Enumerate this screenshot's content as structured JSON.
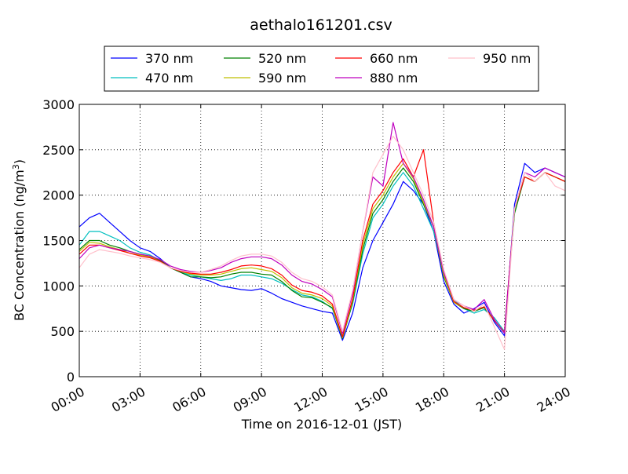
{
  "chart_data": {
    "type": "line",
    "title": "aethalo161201.csv",
    "xlabel": "Time on 2016-12-01 (JST)",
    "ylabel_main": "BC Concentration (ng/m",
    "ylabel_sup": "3",
    "ylabel_close": ")",
    "xlim": [
      "2016-12-01 00:00",
      "2016-12-02 00:00"
    ],
    "ylim": [
      0,
      3000
    ],
    "x_ticks": [
      {
        "h": 0,
        "label": "00:00"
      },
      {
        "h": 3,
        "label": "03:00"
      },
      {
        "h": 6,
        "label": "06:00"
      },
      {
        "h": 9,
        "label": "09:00"
      },
      {
        "h": 12,
        "label": "12:00"
      },
      {
        "h": 15,
        "label": "15:00"
      },
      {
        "h": 18,
        "label": "18:00"
      },
      {
        "h": 21,
        "label": "21:00"
      },
      {
        "h": 24,
        "label": "24:00"
      }
    ],
    "y_ticks": [
      {
        "v": 0,
        "label": "0"
      },
      {
        "v": 500,
        "label": "500"
      },
      {
        "v": 1000,
        "label": "1000"
      },
      {
        "v": 1500,
        "label": "1500"
      },
      {
        "v": 2000,
        "label": "2000"
      },
      {
        "v": 2500,
        "label": "2500"
      },
      {
        "v": 3000,
        "label": "3000"
      }
    ],
    "grid": true,
    "legend": "top-center",
    "x": [
      "00:00",
      "00:30",
      "01:00",
      "01:30",
      "02:00",
      "02:30",
      "03:00",
      "03:30",
      "04:00",
      "04:30",
      "05:00",
      "05:30",
      "06:00",
      "06:30",
      "07:00",
      "07:30",
      "08:00",
      "08:30",
      "09:00",
      "09:30",
      "10:00",
      "10:30",
      "11:00",
      "11:30",
      "12:00",
      "12:30",
      "13:00",
      "13:30",
      "14:00",
      "14:30",
      "15:00",
      "15:30",
      "16:00",
      "16:30",
      "17:00",
      "17:30",
      "18:00",
      "18:30",
      "19:00",
      "19:30",
      "20:00",
      "20:30",
      "21:00",
      "21:30",
      "22:00",
      "22:30",
      "23:00",
      "23:30",
      "24:00"
    ],
    "series": [
      {
        "name": "370 nm",
        "color": "#0000ff",
        "values": [
          1650,
          1750,
          1800,
          1700,
          1600,
          1500,
          1420,
          1380,
          1300,
          1200,
          1150,
          1100,
          1080,
          1050,
          1000,
          980,
          960,
          950,
          970,
          920,
          860,
          820,
          780,
          750,
          720,
          700,
          400,
          700,
          1200,
          1500,
          1700,
          1900,
          2150,
          2050,
          1900,
          1600,
          1050,
          800,
          700,
          750,
          820,
          600,
          450,
          1900,
          2350,
          2250,
          2300,
          2250,
          2200
        ]
      },
      {
        "name": "470 nm",
        "color": "#00bfbf",
        "values": [
          1450,
          1600,
          1600,
          1550,
          1500,
          1420,
          1370,
          1340,
          1280,
          1200,
          1150,
          1120,
          1100,
          1080,
          1060,
          1080,
          1120,
          1120,
          1100,
          1080,
          1030,
          960,
          900,
          880,
          830,
          750,
          450,
          800,
          1350,
          1750,
          1900,
          2100,
          2250,
          2100,
          1850,
          1600,
          1150,
          850,
          750,
          700,
          740,
          650,
          500,
          1850,
          2200,
          2150,
          2250,
          2200,
          2150
        ]
      },
      {
        "name": "520 nm",
        "color": "#008000",
        "values": [
          1400,
          1500,
          1500,
          1450,
          1420,
          1380,
          1350,
          1320,
          1280,
          1200,
          1150,
          1100,
          1100,
          1090,
          1100,
          1130,
          1150,
          1150,
          1130,
          1120,
          1050,
          950,
          880,
          870,
          820,
          760,
          420,
          820,
          1400,
          1800,
          1950,
          2150,
          2300,
          2150,
          1900,
          1650,
          1100,
          820,
          750,
          720,
          760,
          620,
          480,
          1800,
          2200,
          2150,
          2250,
          2200,
          2150
        ]
      },
      {
        "name": "590 nm",
        "color": "#bfbf00",
        "values": [
          1380,
          1480,
          1470,
          1430,
          1400,
          1360,
          1340,
          1320,
          1270,
          1200,
          1160,
          1130,
          1120,
          1120,
          1130,
          1160,
          1190,
          1200,
          1180,
          1160,
          1090,
          980,
          920,
          900,
          860,
          780,
          430,
          840,
          1450,
          1850,
          2000,
          2200,
          2350,
          2180,
          1920,
          1650,
          1120,
          820,
          760,
          730,
          770,
          620,
          490,
          1850,
          2200,
          2150,
          2250,
          2200,
          2150
        ]
      },
      {
        "name": "660 nm",
        "color": "#ff0000",
        "values": [
          1350,
          1450,
          1450,
          1420,
          1390,
          1360,
          1330,
          1310,
          1270,
          1200,
          1160,
          1140,
          1130,
          1130,
          1150,
          1180,
          1220,
          1230,
          1220,
          1190,
          1120,
          1010,
          950,
          930,
          890,
          800,
          440,
          860,
          1500,
          1900,
          2050,
          2250,
          2400,
          2200,
          2500,
          1700,
          1150,
          830,
          760,
          730,
          770,
          620,
          490,
          1850,
          2200,
          2150,
          2250,
          2200,
          2150
        ]
      },
      {
        "name": "880 nm",
        "color": "#bf00bf",
        "values": [
          1300,
          1420,
          1450,
          1420,
          1400,
          1380,
          1350,
          1330,
          1290,
          1220,
          1180,
          1160,
          1150,
          1170,
          1200,
          1260,
          1300,
          1320,
          1320,
          1300,
          1230,
          1120,
          1050,
          1020,
          960,
          880,
          480,
          920,
          1600,
          2200,
          2100,
          2800,
          2350,
          2200,
          1950,
          1650,
          1150,
          850,
          780,
          740,
          850,
          630,
          480,
          1850,
          2250,
          2200,
          2300,
          2250,
          2200
        ]
      },
      {
        "name": "950 nm",
        "color": "#ffc0cb",
        "values": [
          1200,
          1350,
          1400,
          1380,
          1360,
          1330,
          1310,
          1290,
          1260,
          1200,
          1170,
          1150,
          1150,
          1180,
          1220,
          1280,
          1330,
          1350,
          1350,
          1330,
          1260,
          1150,
          1080,
          1050,
          990,
          900,
          500,
          950,
          1600,
          2250,
          2450,
          2650,
          2500,
          2250,
          2000,
          1700,
          1180,
          850,
          780,
          720,
          800,
          550,
          300,
          1850,
          2250,
          2150,
          2250,
          2100,
          2050
        ]
      }
    ]
  }
}
